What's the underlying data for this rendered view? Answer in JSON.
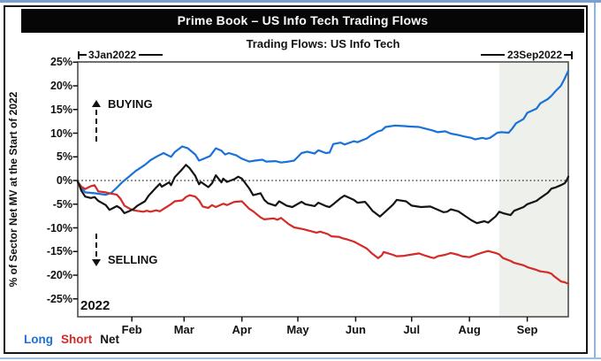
{
  "window": {
    "title": "Prime Book – US Info Tech Trading Flows"
  },
  "header": {
    "subtitle": "Trading Flows: US Info Tech",
    "range_start_label": "3Jan2022",
    "range_end_label": "23Sep2022"
  },
  "annotations": {
    "buying_label": "BUYING",
    "selling_label": "SELLING",
    "year_label": "2022"
  },
  "legend": [
    {
      "label": "Long",
      "color": "#1a72d8"
    },
    {
      "label": "Short",
      "color": "#d42a28"
    },
    {
      "label": "Net",
      "color": "#141414"
    }
  ],
  "chart_data": {
    "type": "line",
    "title": "Prime Book – US Info Tech Trading Flows",
    "subtitle": "Trading Flows: US Info Tech",
    "ylabel": "% of Sector Net MV at the Start of 2022",
    "x_range": [
      "2022-01-03",
      "2022-09-23"
    ],
    "ylim": [
      -28.8,
      25
    ],
    "yticks": [
      25,
      20,
      15,
      10,
      5,
      0,
      -5,
      -10,
      -15,
      -20,
      -25
    ],
    "ytick_suffix": "%",
    "xticks": [
      "Feb",
      "Mar",
      "Apr",
      "May",
      "Jun",
      "Jul",
      "Aug",
      "Sep"
    ],
    "xtick_days": [
      32,
      60,
      91,
      121,
      152,
      182,
      213,
      244
    ],
    "grid": false,
    "zero_line_dotted": true,
    "legend_position": "bottom-left",
    "shaded_region": {
      "from": "08-17",
      "to": "09-23",
      "color": "#edf0eb"
    },
    "series": [
      {
        "name": "Long",
        "color": "#1a72d8",
        "points": [
          [
            "01-03",
            -0.5
          ],
          [
            "01-07",
            -2.5
          ],
          [
            "01-12",
            -2.7
          ],
          [
            "01-18",
            -3.0
          ],
          [
            "01-21",
            -2.6
          ],
          [
            "01-24",
            -1.5
          ],
          [
            "01-27",
            -0.3
          ],
          [
            "01-31",
            1.0
          ],
          [
            "02-03",
            2.0
          ],
          [
            "02-08",
            3.3
          ],
          [
            "02-11",
            4.3
          ],
          [
            "02-15",
            5.2
          ],
          [
            "02-18",
            5.8
          ],
          [
            "02-22",
            5.0
          ],
          [
            "02-24",
            6.0
          ],
          [
            "02-28",
            7.2
          ],
          [
            "03-03",
            6.8
          ],
          [
            "03-07",
            5.5
          ],
          [
            "03-09",
            4.2
          ],
          [
            "03-11",
            4.5
          ],
          [
            "03-15",
            5.2
          ],
          [
            "03-18",
            6.8
          ],
          [
            "03-21",
            6.3
          ],
          [
            "03-23",
            5.5
          ],
          [
            "03-25",
            5.8
          ],
          [
            "03-29",
            5.3
          ],
          [
            "04-01",
            4.6
          ],
          [
            "04-05",
            4.0
          ],
          [
            "04-08",
            4.2
          ],
          [
            "04-12",
            4.4
          ],
          [
            "04-14",
            4.0
          ],
          [
            "04-19",
            4.1
          ],
          [
            "04-22",
            3.8
          ],
          [
            "04-26",
            4.0
          ],
          [
            "04-29",
            4.2
          ],
          [
            "05-03",
            5.8
          ],
          [
            "05-06",
            6.1
          ],
          [
            "05-10",
            5.7
          ],
          [
            "05-12",
            6.4
          ],
          [
            "05-16",
            5.8
          ],
          [
            "05-18",
            5.9
          ],
          [
            "05-20",
            7.7
          ],
          [
            "05-24",
            8.0
          ],
          [
            "05-26",
            7.6
          ],
          [
            "05-31",
            8.3
          ],
          [
            "06-02",
            8.1
          ],
          [
            "06-07",
            8.9
          ],
          [
            "06-09",
            9.5
          ],
          [
            "06-13",
            10.4
          ],
          [
            "06-15",
            10.6
          ],
          [
            "06-17",
            11.3
          ],
          [
            "06-22",
            11.6
          ],
          [
            "06-27",
            11.5
          ],
          [
            "06-30",
            11.4
          ],
          [
            "07-05",
            11.3
          ],
          [
            "07-08",
            11.0
          ],
          [
            "07-12",
            10.6
          ],
          [
            "07-15",
            10.2
          ],
          [
            "07-19",
            10.4
          ],
          [
            "07-22",
            9.9
          ],
          [
            "07-26",
            9.6
          ],
          [
            "07-29",
            9.3
          ],
          [
            "08-02",
            9.0
          ],
          [
            "08-04",
            8.7
          ],
          [
            "08-08",
            9.0
          ],
          [
            "08-10",
            8.8
          ],
          [
            "08-12",
            9.0
          ],
          [
            "08-16",
            10.1
          ],
          [
            "08-18",
            10.2
          ],
          [
            "08-22",
            10.1
          ],
          [
            "08-24",
            11.0
          ],
          [
            "08-26",
            12.1
          ],
          [
            "08-30",
            13.0
          ],
          [
            "09-01",
            14.3
          ],
          [
            "09-06",
            15.2
          ],
          [
            "09-08",
            16.3
          ],
          [
            "09-12",
            17.2
          ],
          [
            "09-14",
            17.9
          ],
          [
            "09-16",
            18.8
          ],
          [
            "09-19",
            20.0
          ],
          [
            "09-21",
            21.5
          ],
          [
            "09-23",
            23.2
          ]
        ]
      },
      {
        "name": "Short",
        "color": "#d42a28",
        "points": [
          [
            "01-03",
            -0.3
          ],
          [
            "01-05",
            -1.3
          ],
          [
            "01-07",
            -1.8
          ],
          [
            "01-10",
            -1.2
          ],
          [
            "01-12",
            -1.0
          ],
          [
            "01-14",
            -2.3
          ],
          [
            "01-18",
            -2.5
          ],
          [
            "01-20",
            -2.7
          ],
          [
            "01-24",
            -3.0
          ],
          [
            "01-26",
            -3.9
          ],
          [
            "01-28",
            -5.3
          ],
          [
            "01-31",
            -6.0
          ],
          [
            "02-02",
            -6.3
          ],
          [
            "02-07",
            -6.6
          ],
          [
            "02-09",
            -6.4
          ],
          [
            "02-11",
            -6.6
          ],
          [
            "02-14",
            -6.3
          ],
          [
            "02-16",
            -6.5
          ],
          [
            "02-18",
            -6.0
          ],
          [
            "02-22",
            -5.0
          ],
          [
            "02-24",
            -4.4
          ],
          [
            "02-28",
            -4.2
          ],
          [
            "03-02",
            -3.5
          ],
          [
            "03-04",
            -3.1
          ],
          [
            "03-07",
            -3.4
          ],
          [
            "03-09",
            -4.2
          ],
          [
            "03-11",
            -5.5
          ],
          [
            "03-14",
            -5.8
          ],
          [
            "03-16",
            -5.2
          ],
          [
            "03-18",
            -5.6
          ],
          [
            "03-22",
            -4.9
          ],
          [
            "03-24",
            -5.2
          ],
          [
            "03-28",
            -4.5
          ],
          [
            "04-01",
            -4.4
          ],
          [
            "04-05",
            -6.0
          ],
          [
            "04-07",
            -6.5
          ],
          [
            "04-11",
            -7.8
          ],
          [
            "04-13",
            -8.2
          ],
          [
            "04-18",
            -8.0
          ],
          [
            "04-20",
            -8.3
          ],
          [
            "04-22",
            -7.9
          ],
          [
            "04-26",
            -9.2
          ],
          [
            "04-29",
            -9.9
          ],
          [
            "05-04",
            -10.3
          ],
          [
            "05-09",
            -10.8
          ],
          [
            "05-11",
            -11.0
          ],
          [
            "05-13",
            -10.8
          ],
          [
            "05-17",
            -11.3
          ],
          [
            "05-19",
            -11.8
          ],
          [
            "05-23",
            -11.9
          ],
          [
            "05-25",
            -12.2
          ],
          [
            "05-27",
            -12.4
          ],
          [
            "05-31",
            -12.9
          ],
          [
            "06-02",
            -13.3
          ],
          [
            "06-07",
            -14.4
          ],
          [
            "06-10",
            -15.5
          ],
          [
            "06-13",
            -16.4
          ],
          [
            "06-15",
            -15.8
          ],
          [
            "06-16",
            -15.1
          ],
          [
            "06-21",
            -15.7
          ],
          [
            "06-23",
            -16.0
          ],
          [
            "06-27",
            -15.9
          ],
          [
            "06-30",
            -15.7
          ],
          [
            "07-05",
            -15.4
          ],
          [
            "07-07",
            -15.7
          ],
          [
            "07-11",
            -16.2
          ],
          [
            "07-13",
            -16.4
          ],
          [
            "07-15",
            -16.0
          ],
          [
            "07-19",
            -15.7
          ],
          [
            "07-22",
            -15.3
          ],
          [
            "07-26",
            -15.7
          ],
          [
            "07-28",
            -16.0
          ],
          [
            "08-01",
            -16.2
          ],
          [
            "08-03",
            -15.9
          ],
          [
            "08-05",
            -15.6
          ],
          [
            "08-09",
            -15.1
          ],
          [
            "08-11",
            -14.9
          ],
          [
            "08-15",
            -15.3
          ],
          [
            "08-17",
            -15.6
          ],
          [
            "08-19",
            -16.4
          ],
          [
            "08-23",
            -17.0
          ],
          [
            "08-25",
            -17.4
          ],
          [
            "08-30",
            -17.9
          ],
          [
            "09-01",
            -18.3
          ],
          [
            "09-06",
            -18.9
          ],
          [
            "09-08",
            -19.2
          ],
          [
            "09-12",
            -19.4
          ],
          [
            "09-14",
            -19.7
          ],
          [
            "09-15",
            -20.1
          ],
          [
            "09-19",
            -21.3
          ],
          [
            "09-21",
            -21.5
          ],
          [
            "09-23",
            -21.8
          ]
        ]
      },
      {
        "name": "Net",
        "color": "#141414",
        "points": [
          [
            "01-03",
            -0.2
          ],
          [
            "01-05",
            -2.2
          ],
          [
            "01-07",
            -3.4
          ],
          [
            "01-10",
            -3.7
          ],
          [
            "01-12",
            -3.5
          ],
          [
            "01-14",
            -4.3
          ],
          [
            "01-18",
            -5.2
          ],
          [
            "01-20",
            -6.2
          ],
          [
            "01-24",
            -5.4
          ],
          [
            "01-26",
            -5.9
          ],
          [
            "01-28",
            -6.9
          ],
          [
            "01-31",
            -6.4
          ],
          [
            "02-02",
            -6.0
          ],
          [
            "02-04",
            -5.3
          ],
          [
            "02-08",
            -4.4
          ],
          [
            "02-10",
            -3.2
          ],
          [
            "02-14",
            -1.5
          ],
          [
            "02-16",
            -0.7
          ],
          [
            "02-17",
            -1.3
          ],
          [
            "02-21",
            -0.4
          ],
          [
            "02-22",
            -1.0
          ],
          [
            "02-24",
            0.7
          ],
          [
            "02-28",
            2.4
          ],
          [
            "03-02",
            3.3
          ],
          [
            "03-04",
            2.6
          ],
          [
            "03-07",
            1.0
          ],
          [
            "03-09",
            -0.8
          ],
          [
            "03-10",
            -0.3
          ],
          [
            "03-14",
            -1.4
          ],
          [
            "03-16",
            -0.6
          ],
          [
            "03-18",
            1.1
          ],
          [
            "03-21",
            -0.4
          ],
          [
            "03-22",
            0.4
          ],
          [
            "03-24",
            -0.3
          ],
          [
            "03-28",
            0.3
          ],
          [
            "03-30",
            0.8
          ],
          [
            "04-01",
            0.4
          ],
          [
            "04-05",
            -1.7
          ],
          [
            "04-07",
            -3.1
          ],
          [
            "04-11",
            -2.7
          ],
          [
            "04-13",
            -4.1
          ],
          [
            "04-15",
            -4.8
          ],
          [
            "04-19",
            -5.3
          ],
          [
            "04-21",
            -4.4
          ],
          [
            "04-25",
            -5.3
          ],
          [
            "04-28",
            -5.6
          ],
          [
            "05-03",
            -4.5
          ],
          [
            "05-05",
            -5.0
          ],
          [
            "05-10",
            -5.4
          ],
          [
            "05-12",
            -4.7
          ],
          [
            "05-16",
            -5.4
          ],
          [
            "05-18",
            -5.6
          ],
          [
            "05-20",
            -5.0
          ],
          [
            "05-24",
            -3.7
          ],
          [
            "05-26",
            -3.2
          ],
          [
            "05-31",
            -4.1
          ],
          [
            "06-02",
            -4.7
          ],
          [
            "06-06",
            -4.5
          ],
          [
            "06-08",
            -5.4
          ],
          [
            "06-10",
            -6.4
          ],
          [
            "06-14",
            -7.6
          ],
          [
            "06-16",
            -6.9
          ],
          [
            "06-21",
            -5.1
          ],
          [
            "06-23",
            -4.1
          ],
          [
            "06-28",
            -4.4
          ],
          [
            "07-01",
            -5.3
          ],
          [
            "07-06",
            -5.6
          ],
          [
            "07-11",
            -5.5
          ],
          [
            "07-14",
            -6.0
          ],
          [
            "07-18",
            -6.7
          ],
          [
            "07-20",
            -6.6
          ],
          [
            "07-22",
            -6.1
          ],
          [
            "07-26",
            -6.5
          ],
          [
            "07-29",
            -7.3
          ],
          [
            "08-02",
            -8.4
          ],
          [
            "08-05",
            -9.0
          ],
          [
            "08-09",
            -8.6
          ],
          [
            "08-11",
            -8.9
          ],
          [
            "08-15",
            -7.6
          ],
          [
            "08-17",
            -6.6
          ],
          [
            "08-19",
            -6.9
          ],
          [
            "08-23",
            -7.3
          ],
          [
            "08-25",
            -6.4
          ],
          [
            "08-30",
            -5.6
          ],
          [
            "09-01",
            -5.0
          ],
          [
            "09-06",
            -4.3
          ],
          [
            "09-08",
            -3.7
          ],
          [
            "09-12",
            -2.6
          ],
          [
            "09-14",
            -1.7
          ],
          [
            "09-16",
            -1.5
          ],
          [
            "09-19",
            -1.0
          ],
          [
            "09-21",
            -0.6
          ],
          [
            "09-22",
            -0.1
          ],
          [
            "09-23",
            0.8
          ]
        ]
      }
    ]
  }
}
